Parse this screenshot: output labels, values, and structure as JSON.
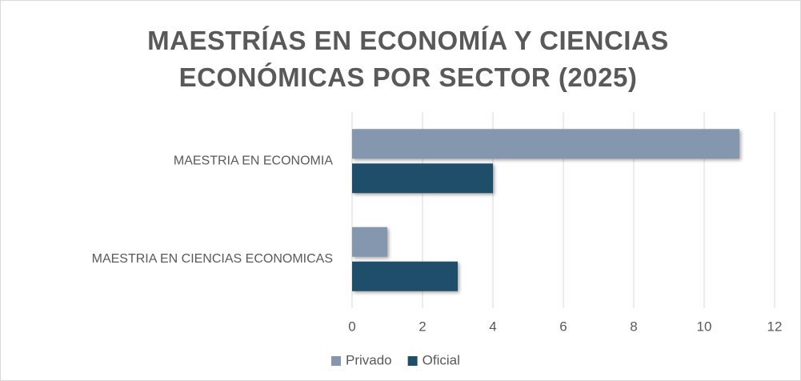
{
  "chart_data": {
    "type": "bar",
    "orientation": "horizontal",
    "title": "MAESTRÍAS EN ECONOMÍA Y CIENCIAS ECONÓMICAS POR SECTOR (2025)",
    "categories": [
      "MAESTRIA EN ECONOMIA",
      "MAESTRIA EN CIENCIAS ECONOMICAS"
    ],
    "series": [
      {
        "name": "Privado",
        "color": "#8497ae",
        "values": [
          11,
          1
        ]
      },
      {
        "name": "Oficial",
        "color": "#1f4e6b",
        "values": [
          4,
          3
        ]
      }
    ],
    "xlim": [
      0,
      12
    ],
    "xticks": [
      0,
      2,
      4,
      6,
      8,
      10,
      12
    ],
    "grid": true,
    "legend": "bottom"
  }
}
